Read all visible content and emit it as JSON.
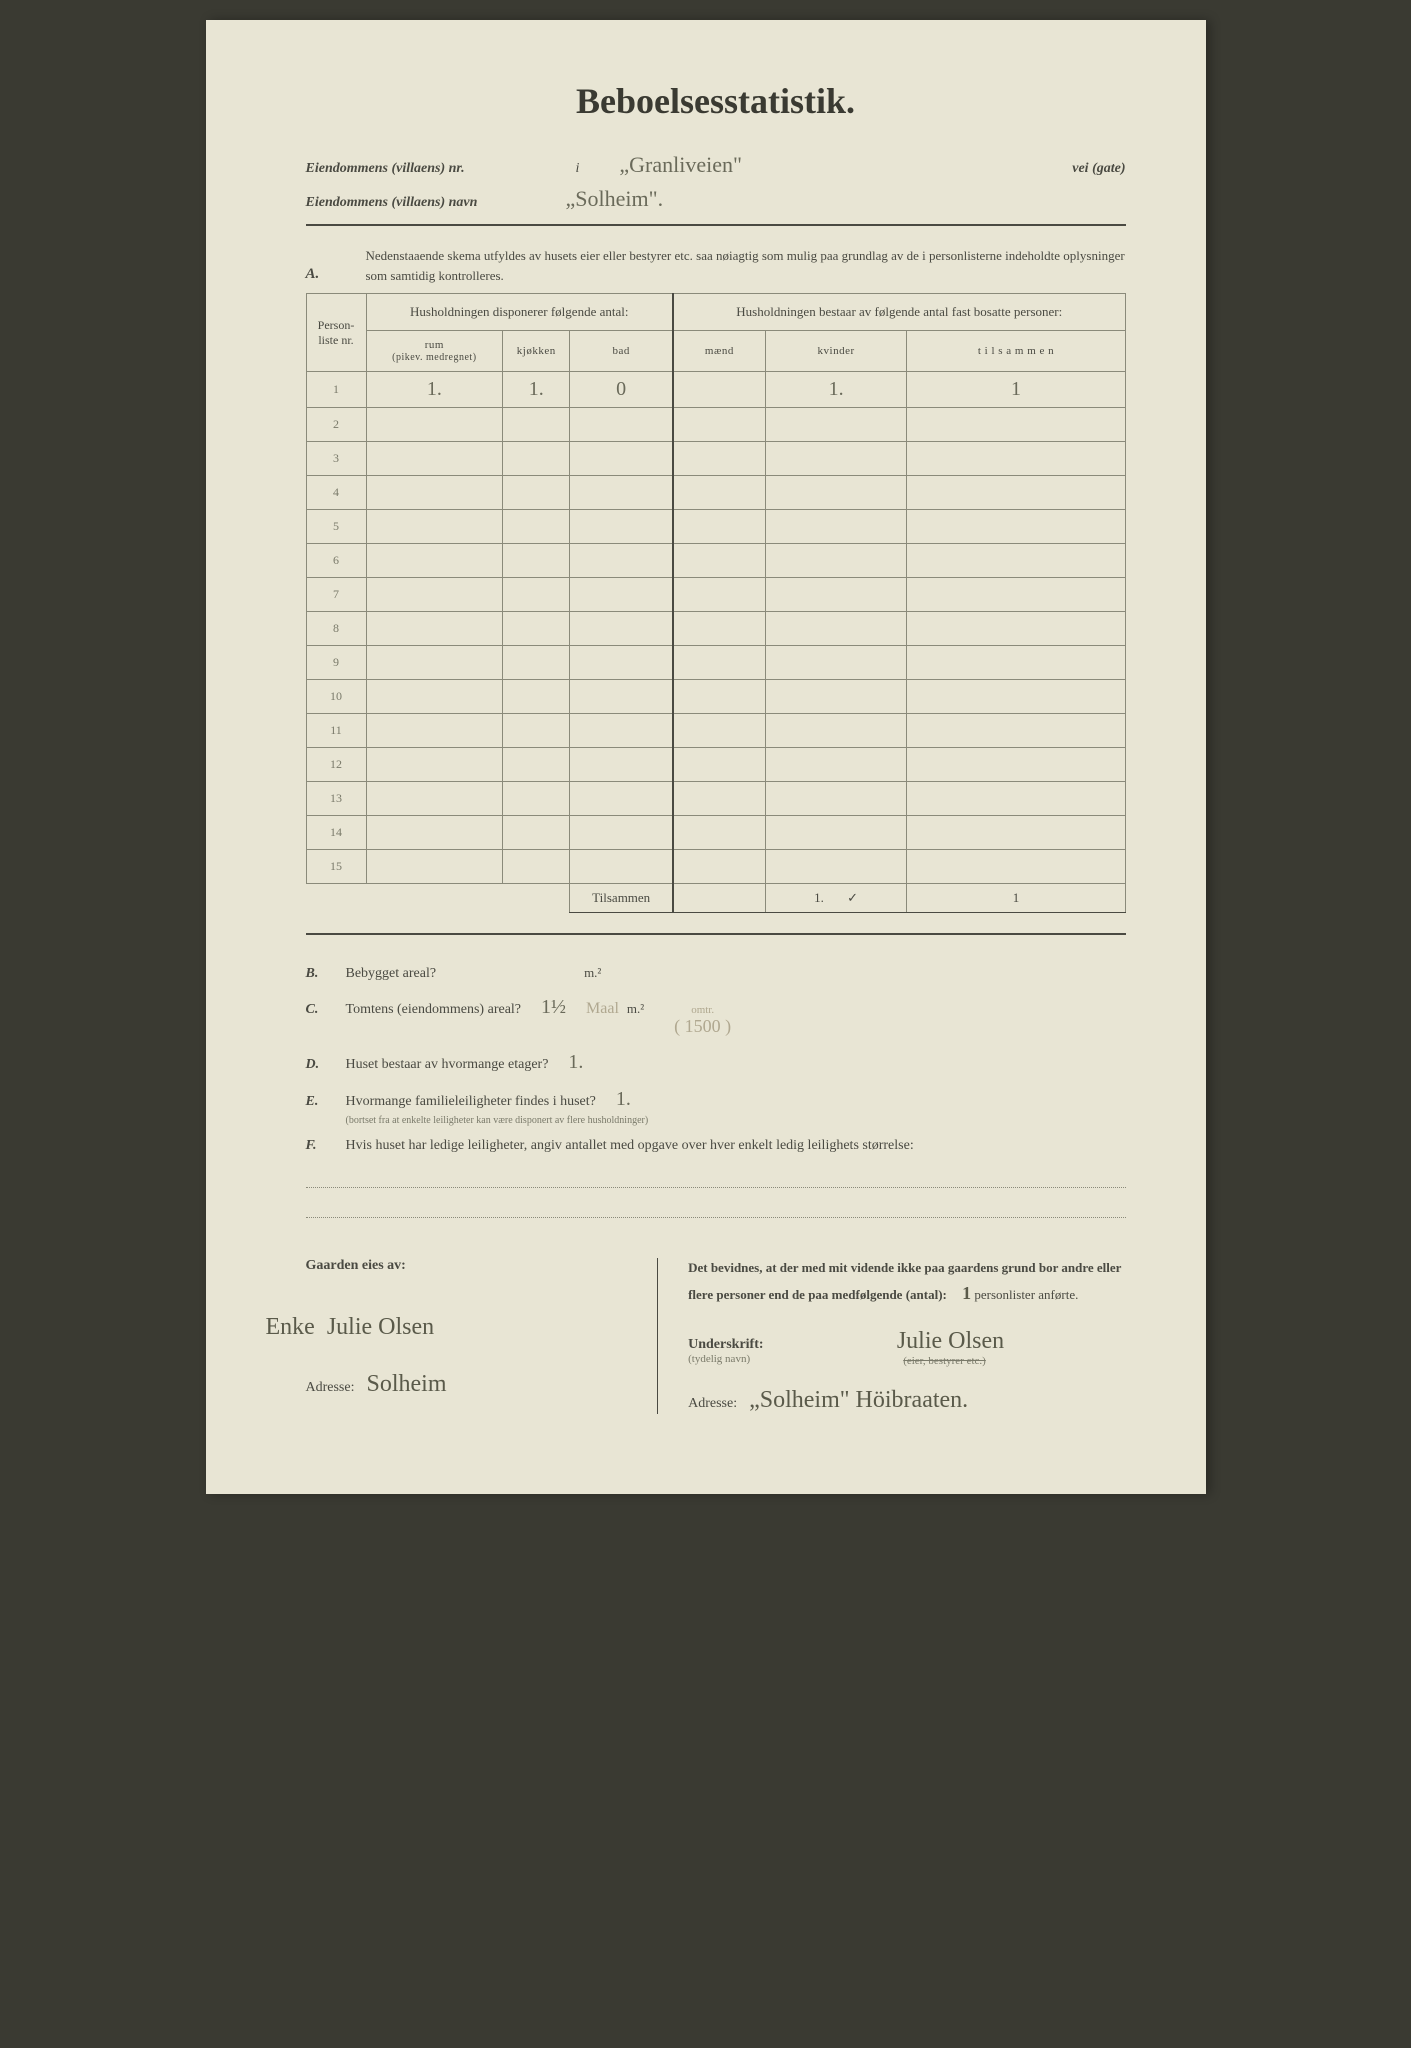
{
  "title": "Beboelsesstatistik.",
  "header": {
    "nr_label": "Eiendommens (villaens) nr.",
    "nr_value": "",
    "i_label": "i",
    "street_value": "„Granliveien\"",
    "street_suffix": "vei (gate)",
    "name_label": "Eiendommens (villaens) navn",
    "name_value": "„Solheim\"."
  },
  "section_a": {
    "letter": "A.",
    "instruction": "Nedenstaaende skema utfyldes av husets eier eller bestyrer etc. saa nøiagtig som mulig paa grundlag av de i personlisterne indeholdte oplysninger som samtidig kontrolleres."
  },
  "table": {
    "col_nr": "Person-liste nr.",
    "group1": "Husholdningen disponerer følgende antal:",
    "group2": "Husholdningen bestaar av følgende antal fast bosatte personer:",
    "sub": {
      "rum": "rum",
      "rum_note": "(pikev. medregnet)",
      "kjokken": "kjøkken",
      "bad": "bad",
      "maend": "mænd",
      "kvinder": "kvinder",
      "tilsammen": "t i l s a m m e n"
    },
    "rows": [
      {
        "nr": "1",
        "rum": "1.",
        "kjokken": "1.",
        "bad": "0",
        "maend": "",
        "kvinder": "1.",
        "tilsammen": "1"
      },
      {
        "nr": "2"
      },
      {
        "nr": "3"
      },
      {
        "nr": "4"
      },
      {
        "nr": "5"
      },
      {
        "nr": "6"
      },
      {
        "nr": "7"
      },
      {
        "nr": "8"
      },
      {
        "nr": "9"
      },
      {
        "nr": "10"
      },
      {
        "nr": "11"
      },
      {
        "nr": "12"
      },
      {
        "nr": "13"
      },
      {
        "nr": "14"
      },
      {
        "nr": "15"
      }
    ],
    "total_label": "Tilsammen",
    "total": {
      "maend": "",
      "kvinder": "1.",
      "check": "✓",
      "tilsammen": "1"
    }
  },
  "questions": {
    "b": {
      "letter": "B.",
      "text": "Bebygget areal?",
      "value": "",
      "unit": "m.²"
    },
    "c": {
      "letter": "C.",
      "text": "Tomtens (eiendommens) areal?",
      "value": "1½",
      "value_note": "Maal",
      "unit": "m.²",
      "paren": "( 1500 )",
      "paren_note": "omtr."
    },
    "d": {
      "letter": "D.",
      "text": "Huset bestaar av hvormange etager?",
      "value": "1."
    },
    "e": {
      "letter": "E.",
      "text": "Hvormange familieleiligheter findes i huset?",
      "value": "1.",
      "note": "(bortset fra at enkelte leiligheter kan være disponert av flere husholdninger)"
    },
    "f": {
      "letter": "F.",
      "text": "Hvis huset har ledige leiligheter, angiv antallet med opgave over hver enkelt ledig leilighets størrelse:"
    }
  },
  "bottom": {
    "owner_label": "Gaarden eies av:",
    "owner_prefix": "Enke",
    "owner_name": "Julie Olsen",
    "owner_addr_label": "Adresse:",
    "owner_addr": "Solheim",
    "attest": "Det bevidnes, at der med mit vidende ikke paa gaardens grund bor andre eller flere personer end de paa medfølgende (antal):",
    "attest_count": "1",
    "attest_suffix": "personlister anførte.",
    "sign_label": "Underskrift:",
    "sign_note": "(tydelig navn)",
    "sign_name": "Julie Olsen",
    "sign_role": "(eier, bestyrer etc.)",
    "addr_label": "Adresse:",
    "addr_value": "„Solheim\" Höibraaten."
  },
  "colors": {
    "paper": "#e8e5d4",
    "ink": "#4a4a42",
    "handwriting": "#6a6a5a",
    "faint": "#b0a890",
    "border": "#8a8a7a"
  }
}
